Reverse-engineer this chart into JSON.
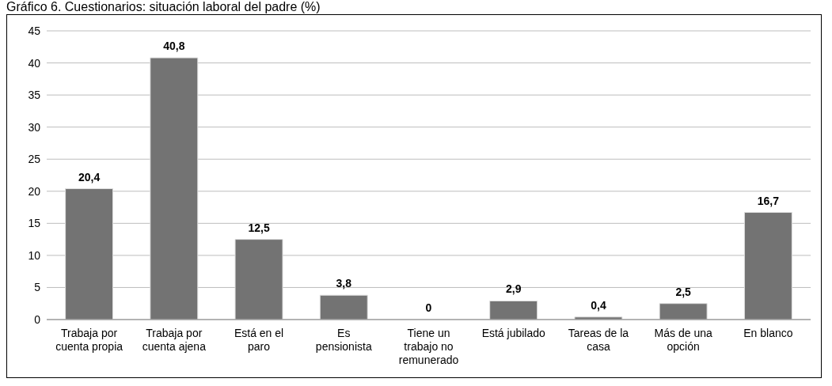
{
  "chart_data": {
    "type": "bar",
    "title": "Gráfico 6. Cuestionarios: situación laboral del padre (%)",
    "categories": [
      "Trabaja por cuenta propia",
      "Trabaja por cuenta ajena",
      "Está en el paro",
      "Es pensionista",
      "Tiene un trabajo no remunerado",
      "Está jubilado",
      "Tareas de la casa",
      "Más de una opción",
      "En blanco"
    ],
    "values": [
      20.4,
      40.8,
      12.5,
      3.8,
      0,
      2.9,
      0.4,
      2.5,
      16.7
    ],
    "color": "#737373",
    "data_labels": true,
    "value_labels": [
      "20,4",
      "40,8",
      "12,5",
      "3,8",
      "0",
      "2,9",
      "0,4",
      "2,5",
      "16,7"
    ],
    "ylim": [
      0,
      45
    ],
    "yticks": [
      0,
      5,
      10,
      15,
      20,
      25,
      30,
      35,
      40,
      45
    ],
    "grid": "y"
  }
}
